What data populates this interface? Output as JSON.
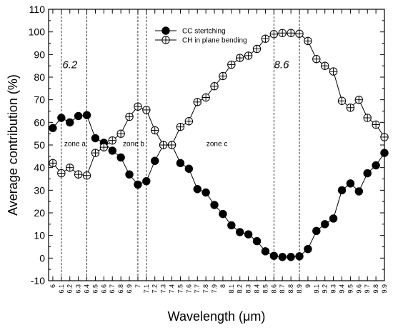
{
  "chart_data": {
    "type": "line",
    "xlabel": "Wavelength (μm)",
    "ylabel": "Average contribution (%)",
    "ylim": [
      -10,
      110
    ],
    "xlim": [
      5.95,
      9.9
    ],
    "y_ticks": [
      -10,
      0,
      10,
      20,
      30,
      40,
      50,
      60,
      70,
      80,
      90,
      100,
      110
    ],
    "x_tick_labels": [
      "6",
      "6.1",
      "6.2",
      "6.3",
      "6.4",
      "6.5",
      "6.6",
      "6.7",
      "6.8",
      "6.9",
      "7",
      "7.1",
      "7.2",
      "7.3",
      "7.4",
      "7.5",
      "7.6",
      "7.7",
      "7.8",
      "7.9",
      "8",
      "8.1",
      "8.2",
      "8.3",
      "8.4",
      "8.5",
      "8.6",
      "8.7",
      "8.8",
      "8.9",
      "9",
      "9.1",
      "9.2",
      "9.3",
      "9.4",
      "9.5",
      "9.6",
      "9.7",
      "9.8",
      "9.9"
    ],
    "legend_position": "top-center",
    "grid": false,
    "series": [
      {
        "name": "CC stertching",
        "marker": "filled-circle",
        "color": "#000000",
        "x": [
          6.0,
          6.1,
          6.2,
          6.3,
          6.4,
          6.5,
          6.6,
          6.7,
          6.8,
          6.9,
          7.0,
          7.1,
          7.2,
          7.3,
          7.4,
          7.5,
          7.6,
          7.7,
          7.8,
          7.9,
          8.0,
          8.1,
          8.2,
          8.3,
          8.4,
          8.5,
          8.6,
          8.7,
          8.8,
          8.9,
          9.0,
          9.1,
          9.2,
          9.3,
          9.4,
          9.5,
          9.6,
          9.7,
          9.8,
          9.9
        ],
        "values": [
          57.5,
          62,
          60,
          62.8,
          63.2,
          53,
          51,
          47.5,
          44.5,
          37,
          32.5,
          34,
          43,
          50,
          50,
          42,
          39.5,
          30.5,
          29,
          23.5,
          19.5,
          14.5,
          11.5,
          10.5,
          7.5,
          3,
          1,
          0.5,
          0.5,
          0.8,
          4,
          12,
          15,
          17.5,
          30,
          33,
          29.5,
          37.5,
          41,
          46.5
        ]
      },
      {
        "name": "CH in plane bending",
        "marker": "crossed-circle",
        "color": "#000000",
        "x": [
          6.0,
          6.1,
          6.2,
          6.3,
          6.4,
          6.5,
          6.6,
          6.7,
          6.8,
          6.9,
          7.0,
          7.1,
          7.2,
          7.3,
          7.4,
          7.5,
          7.6,
          7.7,
          7.8,
          7.9,
          8.0,
          8.1,
          8.2,
          8.3,
          8.4,
          8.5,
          8.6,
          8.7,
          8.8,
          8.9,
          9.0,
          9.1,
          9.2,
          9.3,
          9.4,
          9.5,
          9.6,
          9.7,
          9.8,
          9.9
        ],
        "values": [
          42,
          37.5,
          40,
          37,
          36.5,
          46.5,
          49,
          52,
          55,
          62.5,
          67,
          65.5,
          56.5,
          50,
          50,
          58,
          60.5,
          69,
          71,
          76,
          80.5,
          85.5,
          88.5,
          89.5,
          92.5,
          97,
          99,
          99.5,
          99.5,
          99.2,
          96,
          88,
          85,
          82.5,
          69.5,
          66.5,
          70,
          62,
          59,
          53.5
        ]
      }
    ],
    "vertical_lines_x": [
      6.1,
      6.4,
      7.0,
      7.1,
      8.6,
      8.9
    ],
    "annotations": [
      {
        "text": "6.2",
        "x": 6.2,
        "y": 84,
        "style": "italic"
      },
      {
        "text": "8.6",
        "x": 8.69,
        "y": 84,
        "style": "italic"
      },
      {
        "text": "zone a",
        "x": 6.26,
        "y": 49.5
      },
      {
        "text": "zone b",
        "x": 6.95,
        "y": 49.5
      },
      {
        "text": "zone c",
        "x": 7.93,
        "y": 49.5
      }
    ]
  }
}
